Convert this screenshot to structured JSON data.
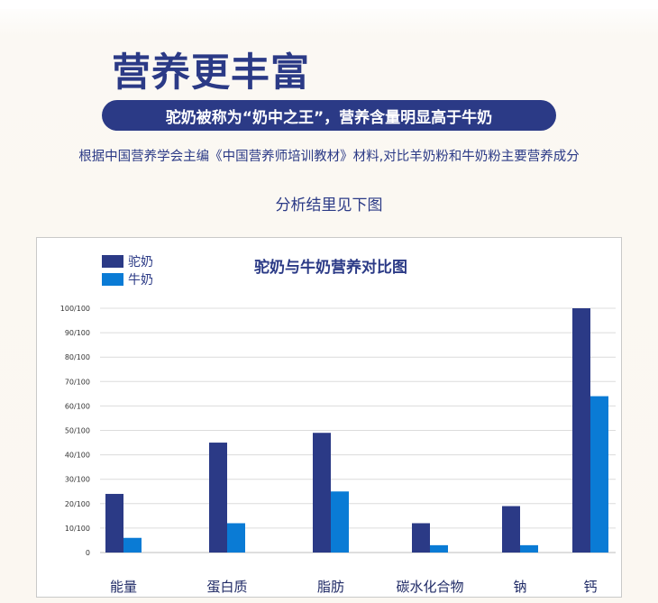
{
  "page": {
    "headline": "营养更丰富",
    "pill_text": "驼奶被称为“奶中之王”，营养含量明显高于牛奶",
    "description": "根据中国营养学会主编《中国营养师培训教材》材料,对比羊奶粉和牛奶粉主要营养成分",
    "subheading": "分析结里见下图"
  },
  "chart_data": {
    "type": "bar",
    "title": "驼奶与牛奶营养对比图",
    "categories": [
      "能量",
      "蛋白质",
      "脂肪",
      "碳水化合物",
      "钠",
      "钙"
    ],
    "series": [
      {
        "name": "驼奶",
        "values": [
          24,
          45,
          49,
          12,
          19,
          100
        ],
        "color": "#2b3a86"
      },
      {
        "name": "牛奶",
        "values": [
          6,
          12,
          25,
          3,
          3,
          64
        ],
        "color": "#0a7bd5"
      }
    ],
    "y_ticks": [
      "0",
      "10/100",
      "20/100",
      "30/100",
      "40/100",
      "50/100",
      "60/100",
      "70/100",
      "80/100",
      "90/100",
      "100/100"
    ],
    "ylim": [
      0,
      100
    ],
    "grid": true,
    "legend_position": "top-left"
  }
}
